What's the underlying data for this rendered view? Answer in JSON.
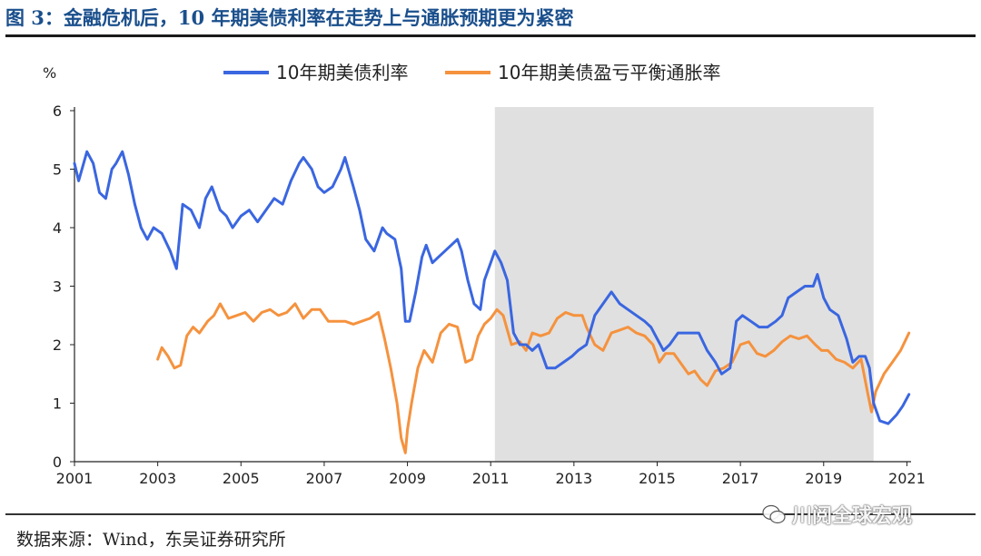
{
  "header": {
    "title": "图 3：金融危机后，10 年期美债利率在走势上与通胀预期更为紧密"
  },
  "footer": {
    "source": "数据来源：Wind，东吴证券研究所",
    "watermark": "川阅全球宏观"
  },
  "colors": {
    "nominal": "#3a66e0",
    "breakeven": "#f5923e",
    "shade": "#e0e0e0",
    "axis": "#222222"
  },
  "chart_data": {
    "type": "line",
    "title": "金融危机后，10 年期美债利率在走势上与通胀预期更为紧密",
    "ylabel": "%",
    "xlim": [
      2001,
      2021.1
    ],
    "ylim": [
      0,
      6
    ],
    "x_ticks": [
      2001,
      2003,
      2005,
      2007,
      2009,
      2011,
      2013,
      2015,
      2017,
      2019,
      2021
    ],
    "x_tick_labels": [
      "2001",
      "2003",
      "2005",
      "2007",
      "2009",
      "2011",
      "2013",
      "2015",
      "2017",
      "2019",
      "2021"
    ],
    "y_ticks": [
      0,
      1,
      2,
      3,
      4,
      5,
      6
    ],
    "y_tick_labels": [
      "0",
      "1",
      "2",
      "3",
      "4",
      "5",
      "6"
    ],
    "shaded_region": [
      2011.1,
      2020.2
    ],
    "legend_position": "top",
    "series": [
      {
        "name": "10年期美债利率",
        "x": [
          2001.0,
          2001.1,
          2001.3,
          2001.45,
          2001.6,
          2001.75,
          2001.9,
          2002.0,
          2002.15,
          2002.3,
          2002.45,
          2002.6,
          2002.75,
          2002.9,
          2003.1,
          2003.3,
          2003.45,
          2003.6,
          2003.8,
          2004.0,
          2004.15,
          2004.3,
          2004.5,
          2004.65,
          2004.8,
          2005.0,
          2005.2,
          2005.4,
          2005.6,
          2005.8,
          2006.0,
          2006.2,
          2006.4,
          2006.5,
          2006.7,
          2006.85,
          2007.0,
          2007.2,
          2007.4,
          2007.5,
          2007.7,
          2007.85,
          2008.0,
          2008.2,
          2008.4,
          2008.5,
          2008.7,
          2008.85,
          2008.95,
          2009.05,
          2009.2,
          2009.35,
          2009.45,
          2009.6,
          2009.75,
          2009.9,
          2010.05,
          2010.2,
          2010.3,
          2010.45,
          2010.6,
          2010.75,
          2010.85,
          2011.0,
          2011.1,
          2011.25,
          2011.4,
          2011.55,
          2011.7,
          2011.85,
          2012.0,
          2012.15,
          2012.35,
          2012.55,
          2012.75,
          2012.95,
          2013.1,
          2013.3,
          2013.5,
          2013.7,
          2013.9,
          2014.1,
          2014.3,
          2014.5,
          2014.7,
          2014.85,
          2015.0,
          2015.15,
          2015.3,
          2015.5,
          2015.7,
          2015.85,
          2016.0,
          2016.2,
          2016.4,
          2016.55,
          2016.75,
          2016.9,
          2017.05,
          2017.25,
          2017.45,
          2017.65,
          2017.85,
          2018.0,
          2018.15,
          2018.35,
          2018.55,
          2018.75,
          2018.85,
          2019.0,
          2019.15,
          2019.35,
          2019.55,
          2019.7,
          2019.85,
          2020.0,
          2020.1,
          2020.2,
          2020.35,
          2020.55,
          2020.75,
          2020.9,
          2021.05
        ],
        "values": [
          5.1,
          4.8,
          5.3,
          5.1,
          4.6,
          4.5,
          5.0,
          5.1,
          5.3,
          4.9,
          4.4,
          4.0,
          3.8,
          4.0,
          3.9,
          3.6,
          3.3,
          4.4,
          4.3,
          4.0,
          4.5,
          4.7,
          4.3,
          4.2,
          4.0,
          4.2,
          4.3,
          4.1,
          4.3,
          4.5,
          4.4,
          4.8,
          5.1,
          5.2,
          5.0,
          4.7,
          4.6,
          4.7,
          5.0,
          5.2,
          4.7,
          4.3,
          3.8,
          3.6,
          4.0,
          3.9,
          3.8,
          3.3,
          2.4,
          2.4,
          2.9,
          3.5,
          3.7,
          3.4,
          3.5,
          3.6,
          3.7,
          3.8,
          3.6,
          3.1,
          2.7,
          2.6,
          3.1,
          3.4,
          3.6,
          3.4,
          3.1,
          2.2,
          2.0,
          2.0,
          1.9,
          2.0,
          1.6,
          1.6,
          1.7,
          1.8,
          1.9,
          2.0,
          2.5,
          2.7,
          2.9,
          2.7,
          2.6,
          2.5,
          2.4,
          2.3,
          2.1,
          1.9,
          2.0,
          2.2,
          2.2,
          2.2,
          2.2,
          1.9,
          1.7,
          1.5,
          1.6,
          2.4,
          2.5,
          2.4,
          2.3,
          2.3,
          2.4,
          2.5,
          2.8,
          2.9,
          3.0,
          3.0,
          3.2,
          2.8,
          2.6,
          2.5,
          2.1,
          1.7,
          1.8,
          1.8,
          1.6,
          1.0,
          0.7,
          0.65,
          0.8,
          0.95,
          1.15
        ]
      },
      {
        "name": "10年期美债盈亏平衡通胀率",
        "x": [
          2003.0,
          2003.1,
          2003.25,
          2003.4,
          2003.55,
          2003.7,
          2003.85,
          2004.0,
          2004.2,
          2004.35,
          2004.5,
          2004.7,
          2004.9,
          2005.1,
          2005.3,
          2005.5,
          2005.7,
          2005.9,
          2006.1,
          2006.3,
          2006.5,
          2006.7,
          2006.9,
          2007.1,
          2007.3,
          2007.5,
          2007.7,
          2007.9,
          2008.1,
          2008.3,
          2008.45,
          2008.6,
          2008.75,
          2008.85,
          2008.95,
          2009.0,
          2009.1,
          2009.25,
          2009.4,
          2009.6,
          2009.8,
          2010.0,
          2010.2,
          2010.4,
          2010.55,
          2010.7,
          2010.85,
          2011.0,
          2011.15,
          2011.3,
          2011.5,
          2011.7,
          2011.85,
          2012.0,
          2012.2,
          2012.4,
          2012.6,
          2012.8,
          2013.0,
          2013.2,
          2013.3,
          2013.5,
          2013.7,
          2013.9,
          2014.1,
          2014.3,
          2014.5,
          2014.7,
          2014.9,
          2015.05,
          2015.2,
          2015.4,
          2015.55,
          2015.75,
          2015.9,
          2016.05,
          2016.2,
          2016.4,
          2016.6,
          2016.8,
          2017.0,
          2017.2,
          2017.4,
          2017.6,
          2017.8,
          2018.0,
          2018.2,
          2018.4,
          2018.6,
          2018.8,
          2018.95,
          2019.1,
          2019.3,
          2019.5,
          2019.7,
          2019.9,
          2020.05,
          2020.15,
          2020.25,
          2020.45,
          2020.65,
          2020.85,
          2021.05
        ],
        "values": [
          1.75,
          1.95,
          1.8,
          1.6,
          1.65,
          2.15,
          2.3,
          2.2,
          2.4,
          2.5,
          2.7,
          2.45,
          2.5,
          2.55,
          2.4,
          2.55,
          2.6,
          2.5,
          2.55,
          2.7,
          2.45,
          2.6,
          2.6,
          2.4,
          2.4,
          2.4,
          2.35,
          2.4,
          2.45,
          2.55,
          2.1,
          1.6,
          1.0,
          0.4,
          0.15,
          0.55,
          1.0,
          1.6,
          1.9,
          1.7,
          2.2,
          2.35,
          2.3,
          1.7,
          1.75,
          2.15,
          2.35,
          2.45,
          2.6,
          2.5,
          2.0,
          2.05,
          1.9,
          2.2,
          2.15,
          2.2,
          2.45,
          2.55,
          2.5,
          2.5,
          2.3,
          2.0,
          1.9,
          2.2,
          2.25,
          2.3,
          2.2,
          2.15,
          2.0,
          1.7,
          1.85,
          1.85,
          1.7,
          1.5,
          1.55,
          1.4,
          1.3,
          1.55,
          1.6,
          1.7,
          2.0,
          2.05,
          1.85,
          1.8,
          1.9,
          2.05,
          2.15,
          2.1,
          2.15,
          2.0,
          1.9,
          1.9,
          1.75,
          1.7,
          1.6,
          1.75,
          1.2,
          0.85,
          1.2,
          1.5,
          1.7,
          1.9,
          2.2
        ]
      }
    ]
  }
}
